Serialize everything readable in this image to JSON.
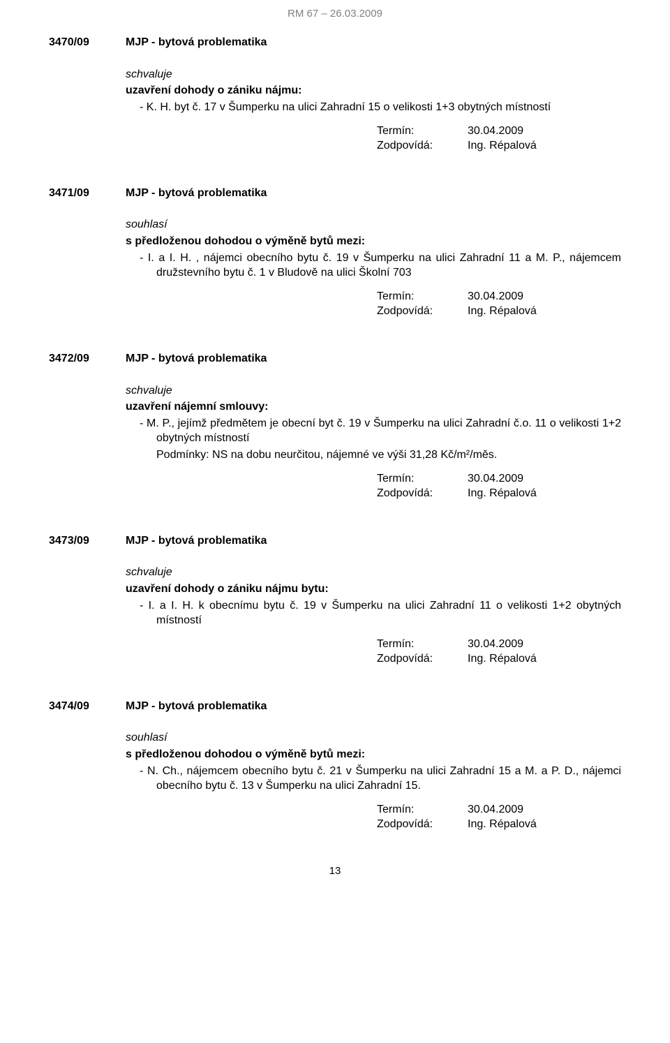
{
  "header": "RM 67 – 26.03.2009",
  "sections": [
    {
      "num": "3470/09",
      "title": "MJP - bytová problematika",
      "verb": "schvaluje",
      "lead": "uzavření dohody o zániku nájmu:",
      "items": [
        "K. H.  byt č. 17 v Šumperku na ulici Zahradní 15 o velikosti 1+3 obytných místností"
      ],
      "term": {
        "date": "30.04.2009",
        "resp": "Ing. Répalová"
      }
    },
    {
      "num": "3471/09",
      "title": "MJP - bytová problematika",
      "verb": "souhlasí",
      "lead": "s předloženou dohodou o výměně bytů mezi:",
      "items": [
        "I. a I. H. , nájemci obecního bytu č. 19 v Šumperku na ulici Zahradní 11 a M. P.,  nájemcem družstevního bytu č. 1 v Bludově na ulici Školní 703"
      ],
      "term": {
        "date": "30.04.2009",
        "resp": "Ing. Répalová"
      }
    },
    {
      "num": "3472/09",
      "title": "MJP - bytová problematika",
      "verb": "schvaluje",
      "lead": "uzavření nájemní smlouvy:",
      "items": [
        "M. P., jejímž předmětem je obecní byt č. 19 v Šumperku na ulici  Zahradní č.o. 11 o velikosti 1+2 obytných místností"
      ],
      "tail": "Podmínky: NS na dobu neurčitou, nájemné ve výši 31,28  Kč/m²/měs.",
      "term": {
        "date": "30.04.2009",
        "resp": "Ing. Répalová"
      }
    },
    {
      "num": "3473/09",
      "title": "MJP - bytová problematika",
      "verb": "schvaluje",
      "lead": "uzavření dohody o zániku nájmu bytu:",
      "items": [
        "I. a I. H.  k obecnímu bytu č. 19 v Šumperku na ulici Zahradní 11  o velikosti 1+2 obytných místností"
      ],
      "term": {
        "date": "30.04.2009",
        "resp": "Ing. Répalová"
      }
    },
    {
      "num": "3474/09",
      "title": "MJP - bytová problematika",
      "verb": "souhlasí",
      "lead": "s předloženou dohodou o výměně bytů mezi:",
      "items": [
        "N. Ch., nájemcem obecního bytu č. 21 v Šumperku na ulici Zahradní 15 a M. a P. D.,  nájemci obecního bytu č. 13    v Šumperku na ulici Zahradní 15."
      ],
      "term": {
        "date": "30.04.2009",
        "resp": "Ing. Répalová"
      }
    }
  ],
  "labels": {
    "termin": "Termín:",
    "zodp": "Zodpovídá:"
  },
  "pagenum": "13"
}
